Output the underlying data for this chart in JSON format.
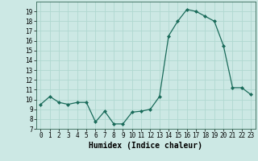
{
  "x": [
    0,
    1,
    2,
    3,
    4,
    5,
    6,
    7,
    8,
    9,
    10,
    11,
    12,
    13,
    14,
    15,
    16,
    17,
    18,
    19,
    20,
    21,
    22,
    23
  ],
  "y": [
    9.5,
    10.3,
    9.7,
    9.5,
    9.7,
    9.7,
    7.7,
    8.8,
    7.5,
    7.5,
    8.7,
    8.8,
    9.0,
    10.3,
    16.5,
    18.0,
    19.2,
    19.0,
    18.5,
    18.0,
    15.5,
    11.2,
    11.2,
    10.5
  ],
  "xlabel": "Humidex (Indice chaleur)",
  "ylim": [
    7,
    20
  ],
  "xlim": [
    -0.5,
    23.5
  ],
  "line_color": "#1a6b5a",
  "marker": "D",
  "marker_size": 2,
  "bg_color": "#cce8e4",
  "grid_color": "#b0d8d0",
  "yticks": [
    7,
    8,
    9,
    10,
    11,
    12,
    13,
    14,
    15,
    16,
    17,
    18,
    19
  ],
  "xticks": [
    0,
    1,
    2,
    3,
    4,
    5,
    6,
    7,
    8,
    9,
    10,
    11,
    12,
    13,
    14,
    15,
    16,
    17,
    18,
    19,
    20,
    21,
    22,
    23
  ]
}
